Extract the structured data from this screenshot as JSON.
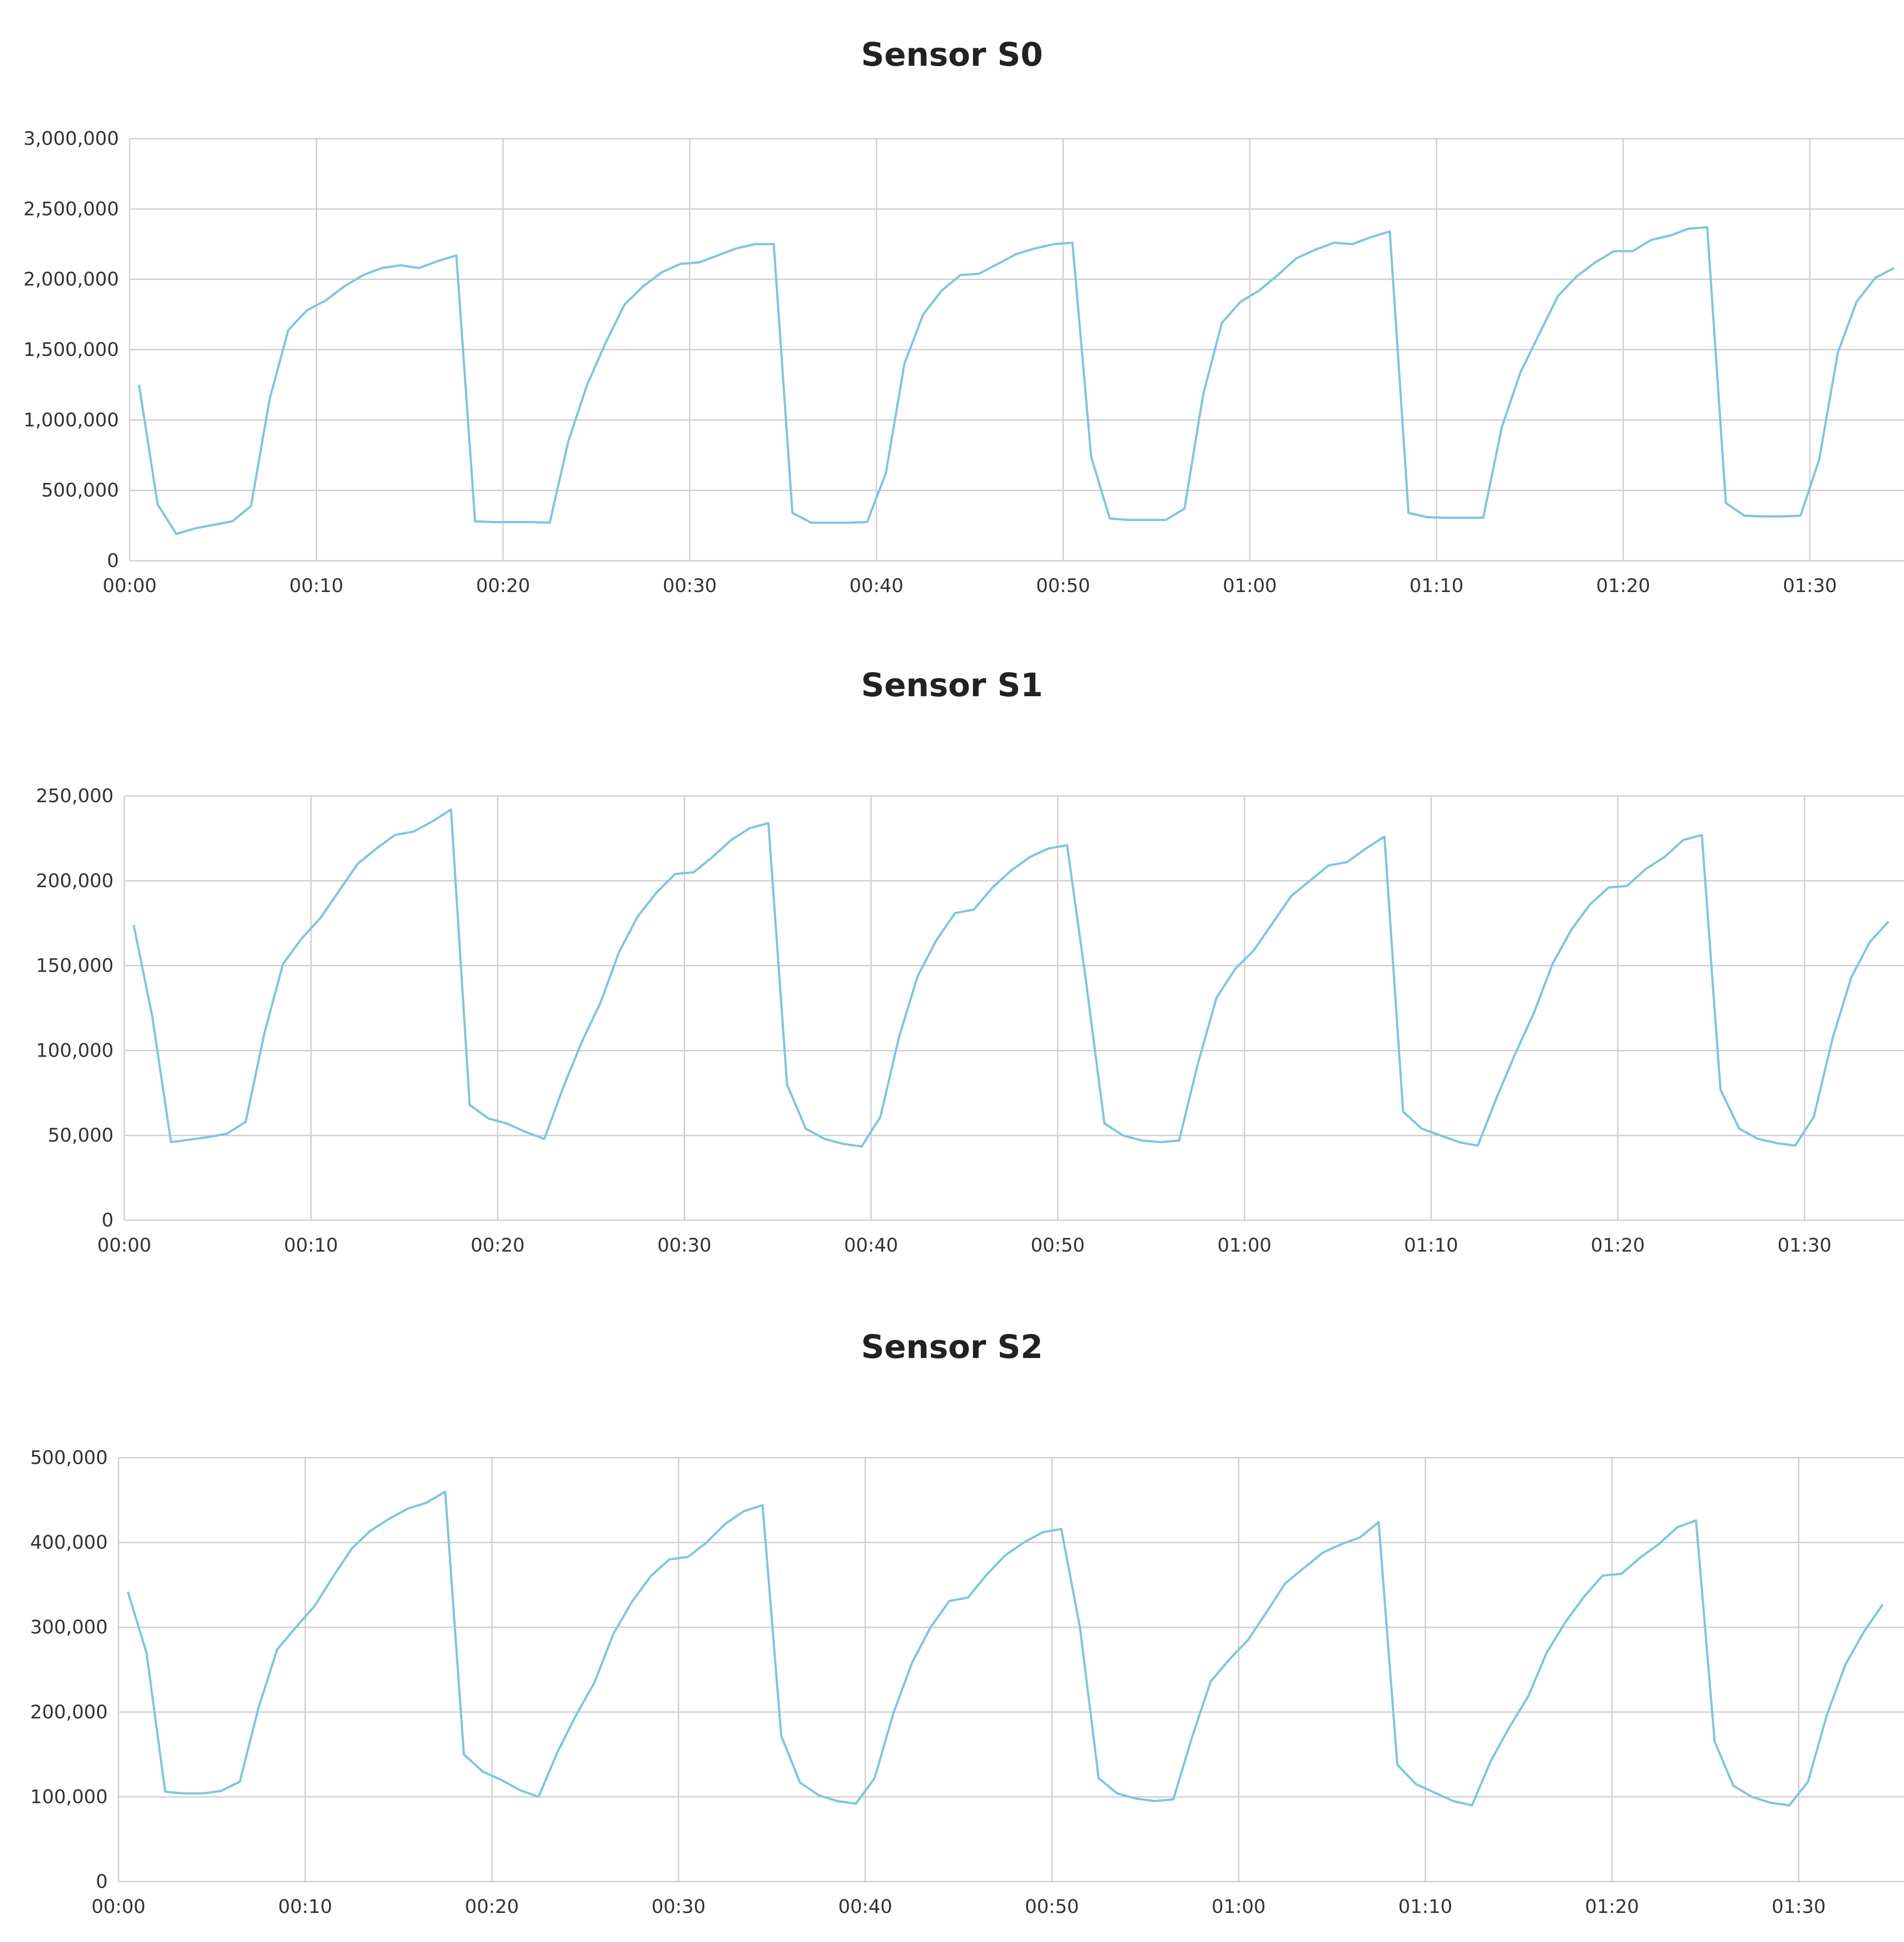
{
  "colors": {
    "series": "#7fc6de",
    "grid": "#cfcfcf"
  },
  "chart_data": [
    {
      "type": "line",
      "title": "Sensor S0",
      "xlabel": "",
      "ylabel": "",
      "x_ticks": [
        "00:00",
        "00:10",
        "00:20",
        "00:30",
        "00:40",
        "00:50",
        "01:00",
        "01:10",
        "01:20",
        "01:30"
      ],
      "y_ticks": [
        "0",
        "500,000",
        "1,000,000",
        "1,500,000",
        "2,000,000",
        "2,500,000",
        "3,000,000"
      ],
      "ylim": [
        0,
        3000000
      ],
      "xlim_minutes": [
        0,
        94.5
      ],
      "grid": true,
      "series": [
        {
          "x": [
            0.5,
            1.5,
            2.5,
            3.5,
            4.5,
            5.5,
            6.5,
            7.5,
            8.5,
            9.5,
            10.5,
            11.5,
            12.5,
            13.5,
            14.5,
            15.5,
            16.5,
            17.5,
            18.5,
            19.5,
            20.5,
            21.5,
            22.5,
            23.5,
            24.5,
            25.5,
            26.5,
            27.5,
            28.5,
            29.5,
            30.5,
            31.5,
            32.5,
            33.5,
            34.5,
            35.5,
            36.5,
            37.5,
            38.5,
            39.5,
            40.5,
            41.5,
            42.5,
            43.5,
            44.5,
            45.5,
            46.5,
            47.5,
            48.5,
            49.5,
            50.5,
            51.5,
            52.5,
            53.5,
            54.5,
            55.5,
            56.5,
            57.5,
            58.5,
            59.5,
            60.5,
            61.5,
            62.5,
            63.5,
            64.5,
            65.5,
            66.5,
            67.5,
            68.5,
            69.5,
            70.5,
            71.5,
            72.5,
            73.5,
            74.5,
            75.5,
            76.5,
            77.5,
            78.5,
            79.5,
            80.5,
            81.5,
            82.5,
            83.5,
            84.5,
            85.5,
            86.5,
            87.5,
            88.5,
            89.5,
            90.5,
            91.5,
            92.5,
            93.5,
            94.5
          ],
          "y": [
            1250000,
            400000,
            190000,
            230000,
            255000,
            280000,
            390000,
            1150000,
            1640000,
            1780000,
            1850000,
            1950000,
            2030000,
            2080000,
            2100000,
            2080000,
            2130000,
            2170000,
            280000,
            275000,
            275000,
            275000,
            270000,
            850000,
            1250000,
            1550000,
            1820000,
            1950000,
            2050000,
            2110000,
            2120000,
            2170000,
            2220000,
            2250000,
            2250000,
            340000,
            270000,
            270000,
            270000,
            275000,
            620000,
            1400000,
            1750000,
            1920000,
            2030000,
            2040000,
            2110000,
            2180000,
            2220000,
            2250000,
            2260000,
            740000,
            300000,
            290000,
            290000,
            290000,
            370000,
            1180000,
            1690000,
            1840000,
            1920000,
            2030000,
            2150000,
            2210000,
            2260000,
            2250000,
            2300000,
            2340000,
            340000,
            310000,
            305000,
            305000,
            305000,
            950000,
            1340000,
            1610000,
            1880000,
            2020000,
            2120000,
            2200000,
            2200000,
            2280000,
            2310000,
            2360000,
            2370000,
            410000,
            320000,
            315000,
            315000,
            320000,
            720000,
            1480000,
            1840000,
            2010000,
            2080000
          ]
        }
      ]
    },
    {
      "type": "line",
      "title": "Sensor S1",
      "xlabel": "",
      "ylabel": "",
      "x_ticks": [
        "00:00",
        "00:10",
        "00:20",
        "00:30",
        "00:40",
        "00:50",
        "01:00",
        "01:10",
        "01:20",
        "01:30"
      ],
      "y_ticks": [
        "0",
        "50,000",
        "100,000",
        "150,000",
        "200,000",
        "250,000"
      ],
      "ylim": [
        0,
        250000
      ],
      "xlim_minutes": [
        0,
        94.5
      ],
      "grid": true,
      "series": [
        {
          "x": [
            0.5,
            1.5,
            2.5,
            3.5,
            4.5,
            5.5,
            6.5,
            7.5,
            8.5,
            9.5,
            10.5,
            11.5,
            12.5,
            13.5,
            14.5,
            15.5,
            16.5,
            17.5,
            18.5,
            19.5,
            20.5,
            21.5,
            22.5,
            23.5,
            24.5,
            25.5,
            26.5,
            27.5,
            28.5,
            29.5,
            30.5,
            31.5,
            32.5,
            33.5,
            34.5,
            35.5,
            36.5,
            37.5,
            38.5,
            39.5,
            40.5,
            41.5,
            42.5,
            43.5,
            44.5,
            45.5,
            46.5,
            47.5,
            48.5,
            49.5,
            50.5,
            51.5,
            52.5,
            53.5,
            54.5,
            55.5,
            56.5,
            57.5,
            58.5,
            59.5,
            60.5,
            61.5,
            62.5,
            63.5,
            64.5,
            65.5,
            66.5,
            67.5,
            68.5,
            69.5,
            70.5,
            71.5,
            72.5,
            73.5,
            74.5,
            75.5,
            76.5,
            77.5,
            78.5,
            79.5,
            80.5,
            81.5,
            82.5,
            83.5,
            84.5,
            85.5,
            86.5,
            87.5,
            88.5,
            89.5,
            90.5,
            91.5,
            92.5,
            93.5,
            94.5
          ],
          "y": [
            174000,
            120000,
            46000,
            47500,
            49000,
            51000,
            58000,
            110000,
            151000,
            166000,
            178000,
            194000,
            210000,
            219000,
            227000,
            229000,
            235000,
            242000,
            68000,
            60000,
            57000,
            52000,
            48000,
            78000,
            105000,
            128000,
            158000,
            179000,
            193000,
            204000,
            205000,
            214000,
            224000,
            231000,
            234000,
            80000,
            54000,
            48000,
            45000,
            43500,
            61000,
            108000,
            144000,
            165000,
            181000,
            183000,
            196000,
            206000,
            214000,
            219000,
            221000,
            142000,
            57000,
            50000,
            47000,
            46000,
            47000,
            92000,
            131000,
            148000,
            159000,
            175000,
            191000,
            200000,
            209000,
            211000,
            219000,
            226000,
            64000,
            54000,
            50000,
            46000,
            44000,
            72000,
            98000,
            122000,
            151000,
            171000,
            186000,
            196000,
            197000,
            207000,
            214000,
            224000,
            227000,
            77000,
            54000,
            48000,
            45500,
            44000,
            61000,
            107000,
            143000,
            164000,
            176000
          ]
        }
      ]
    },
    {
      "type": "line",
      "title": "Sensor S2",
      "xlabel": "",
      "ylabel": "",
      "x_ticks": [
        "00:00",
        "00:10",
        "00:20",
        "00:30",
        "00:40",
        "00:50",
        "01:00",
        "01:10",
        "01:20",
        "01:30"
      ],
      "y_ticks": [
        "0",
        "100,000",
        "200,000",
        "300,000",
        "400,000",
        "500,000"
      ],
      "ylim": [
        0,
        500000
      ],
      "xlim_minutes": [
        0,
        94.5
      ],
      "grid": true,
      "series": [
        {
          "x": [
            0.5,
            1.5,
            2.5,
            3.5,
            4.5,
            5.5,
            6.5,
            7.5,
            8.5,
            9.5,
            10.5,
            11.5,
            12.5,
            13.5,
            14.5,
            15.5,
            16.5,
            17.5,
            18.5,
            19.5,
            20.5,
            21.5,
            22.5,
            23.5,
            24.5,
            25.5,
            26.5,
            27.5,
            28.5,
            29.5,
            30.5,
            31.5,
            32.5,
            33.5,
            34.5,
            35.5,
            36.5,
            37.5,
            38.5,
            39.5,
            40.5,
            41.5,
            42.5,
            43.5,
            44.5,
            45.5,
            46.5,
            47.5,
            48.5,
            49.5,
            50.5,
            51.5,
            52.5,
            53.5,
            54.5,
            55.5,
            56.5,
            57.5,
            58.5,
            59.5,
            60.5,
            61.5,
            62.5,
            63.5,
            64.5,
            65.5,
            66.5,
            67.5,
            68.5,
            69.5,
            70.5,
            71.5,
            72.5,
            73.5,
            74.5,
            75.5,
            76.5,
            77.5,
            78.5,
            79.5,
            80.5,
            81.5,
            82.5,
            83.5,
            84.5,
            85.5,
            86.5,
            87.5,
            88.5,
            89.5,
            90.5,
            91.5,
            92.5,
            93.5,
            94.5
          ],
          "y": [
            342000,
            270000,
            106000,
            104000,
            104000,
            107000,
            118000,
            205000,
            274000,
            300000,
            325000,
            360000,
            393000,
            414000,
            428000,
            440000,
            447000,
            460000,
            150000,
            130000,
            120000,
            108000,
            100000,
            152000,
            196000,
            235000,
            292000,
            330000,
            360000,
            380000,
            383000,
            400000,
            422000,
            437000,
            444000,
            172000,
            117000,
            102000,
            95000,
            92000,
            122000,
            198000,
            258000,
            300000,
            331000,
            335000,
            362000,
            385000,
            400000,
            412000,
            416000,
            300000,
            122000,
            104000,
            98000,
            95000,
            97000,
            170000,
            236000,
            262000,
            285000,
            318000,
            352000,
            370000,
            388000,
            398000,
            406000,
            424000,
            138000,
            115000,
            105000,
            95000,
            90000,
            142000,
            182000,
            218000,
            270000,
            306000,
            336000,
            361000,
            363000,
            382000,
            398000,
            418000,
            426000,
            165000,
            113000,
            100000,
            93000,
            90000,
            118000,
            196000,
            256000,
            295000,
            327000
          ]
        }
      ]
    }
  ]
}
